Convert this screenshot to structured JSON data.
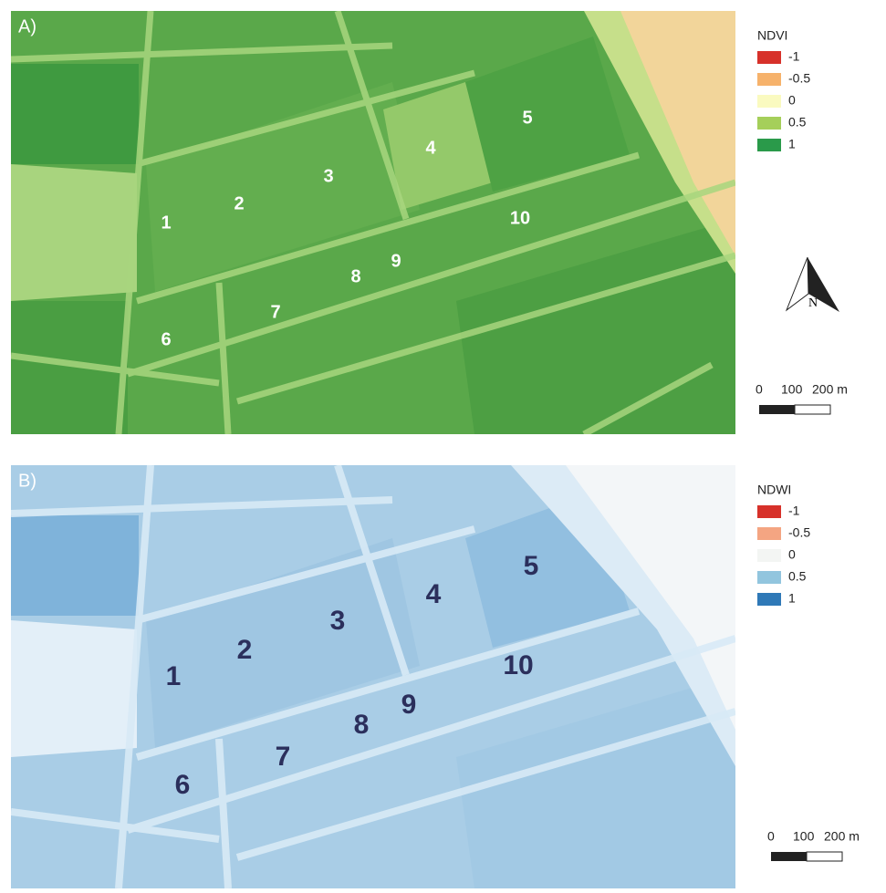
{
  "panels": [
    {
      "label": "A)",
      "legend": {
        "title": "NDVI",
        "items": [
          {
            "label": "-1",
            "color": "#d7312a"
          },
          {
            "label": "-0.5",
            "color": "#f6b26b"
          },
          {
            "label": "0",
            "color": "#fafac0"
          },
          {
            "label": "0.5",
            "color": "#a5cf5a"
          },
          {
            "label": "1",
            "color": "#2a9a4a"
          }
        ]
      },
      "fields": [
        "1",
        "2",
        "3",
        "4",
        "5",
        "6",
        "7",
        "8",
        "9",
        "10"
      ],
      "scale_bar": [
        "0",
        "100",
        "200 m"
      ]
    },
    {
      "label": "B)",
      "legend": {
        "title": "NDWI",
        "items": [
          {
            "label": "-1",
            "color": "#d7312a"
          },
          {
            "label": "-0.5",
            "color": "#f4a582"
          },
          {
            "label": "0",
            "color": "#f3f5f3"
          },
          {
            "label": "0.5",
            "color": "#92c5de"
          },
          {
            "label": "1",
            "color": "#2f79b7"
          }
        ]
      },
      "fields": [
        "1",
        "2",
        "3",
        "4",
        "5",
        "6",
        "7",
        "8",
        "9",
        "10"
      ],
      "scale_bar": [
        "0",
        "100",
        "200 m"
      ]
    }
  ],
  "north_arrow": "N"
}
